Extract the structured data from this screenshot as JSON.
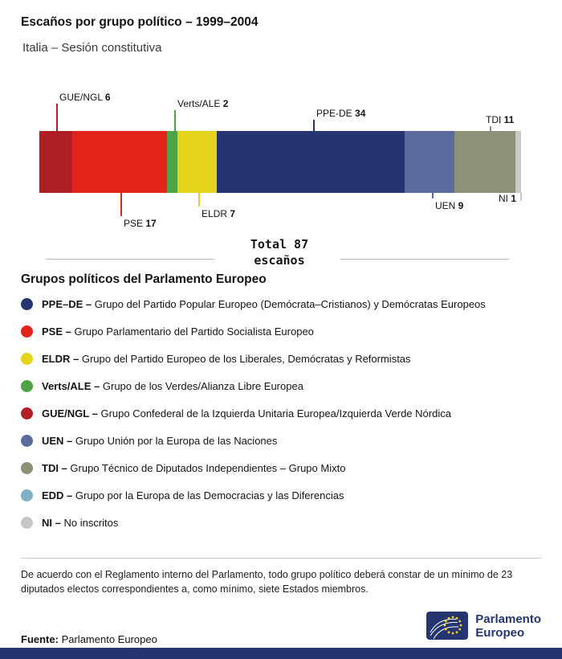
{
  "header": {
    "title": "Escaños por grupo político – 1999–2004",
    "subtitle": "Italia – Sesión constitutiva"
  },
  "chart_data": {
    "type": "bar",
    "orientation": "horizontal-stacked",
    "title": "Escaños por grupo político – 1999–2004",
    "subtitle": "Italia – Sesión constitutiva",
    "total": 87,
    "total_line1": "Total 87",
    "total_line2": "escaños",
    "segments": [
      {
        "name": "GUE/NGL",
        "value": 6,
        "color": "#b01f24"
      },
      {
        "name": "PSE",
        "value": 17,
        "color": "#e2231a"
      },
      {
        "name": "Verts/ALE",
        "value": 2,
        "color": "#4ca446"
      },
      {
        "name": "ELDR",
        "value": 7,
        "color": "#e6d41c"
      },
      {
        "name": "PPE-DE",
        "value": 34,
        "color": "#24356f"
      },
      {
        "name": "UEN",
        "value": 9,
        "color": "#5a6b9e"
      },
      {
        "name": "TDI",
        "value": 11,
        "color": "#8c9178"
      },
      {
        "name": "NI",
        "value": 1,
        "color": "#c8c8c8"
      }
    ]
  },
  "legend": {
    "heading": "Grupos políticos del Parlamento Europeo",
    "items": [
      {
        "abbr": "PPE–DE –",
        "desc": "Grupo del Partido Popular Europeo (Demócrata–Cristianos) y Demócratas Europeos",
        "color": "#24356f"
      },
      {
        "abbr": "PSE –",
        "desc": "Grupo Parlamentario del Partido Socialista Europeo",
        "color": "#e2231a"
      },
      {
        "abbr": "ELDR –",
        "desc": "Grupo del Partido Europeo de los Liberales, Demócratas y Reformistas",
        "color": "#e6d41c"
      },
      {
        "abbr": "Verts/ALE –",
        "desc": "Grupo de los Verdes/Alianza Libre Europea",
        "color": "#4ca446"
      },
      {
        "abbr": "GUE/NGL –",
        "desc": "Grupo Confederal de la Izquierda Unitaria Europea/Izquierda Verde Nórdica",
        "color": "#b01f24"
      },
      {
        "abbr": "UEN –",
        "desc": "Grupo Unión por la Europa de las Naciones",
        "color": "#5a6b9e"
      },
      {
        "abbr": "TDI –",
        "desc": "Grupo Técnico de Diputados Independientes – Grupo Mixto",
        "color": "#8c9178"
      },
      {
        "abbr": "EDD –",
        "desc": "Grupo por la Europa de las Democracias y las Diferencias",
        "color": "#7fb0c8"
      },
      {
        "abbr": "NI –",
        "desc": "No inscritos",
        "color": "#c6c6c6"
      }
    ]
  },
  "footer": {
    "note": "De acuerdo con el Reglamento interno del Parlamento, todo grupo político deberá constar de un mínimo de 23 diputados electos correspondientes a, como mínimo, siete Estados miembros.",
    "source_label": "Fuente:",
    "source_value": "Parlamento Europeo",
    "logo_line1": "Parlamento",
    "logo_line2": "Europeo"
  }
}
